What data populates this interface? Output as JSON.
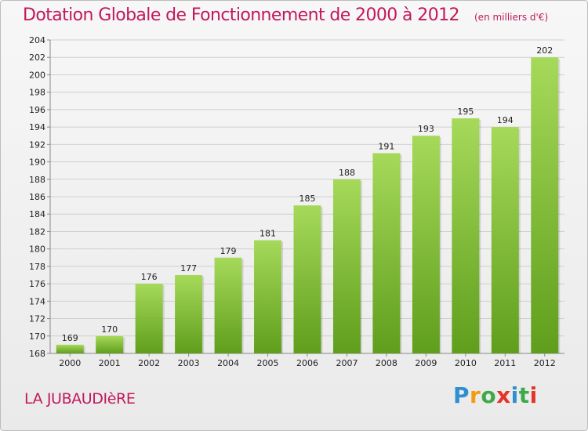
{
  "title": "Dotation Globale de Fonctionnement de 2000 à 2012",
  "subtitle": "(en milliers d'€)",
  "town": "LA JUBAUDIèRE",
  "logo": {
    "text": "Proxiti",
    "letters": [
      "P",
      "r",
      "o",
      "x",
      "i",
      "t",
      "i"
    ],
    "colors": [
      "#2f8fd0",
      "#f39c12",
      "#3ea94a",
      "#e6332a",
      "#2f8fd0",
      "#3ea94a",
      "#e6332a"
    ]
  },
  "colors": {
    "title": "#c2185b",
    "bar_top": "#a6d95a",
    "bar_bottom": "#5f9e1c",
    "grid": "#cfcfcf"
  },
  "chart_data": {
    "type": "bar",
    "categories": [
      "2000",
      "2001",
      "2002",
      "2003",
      "2004",
      "2005",
      "2006",
      "2007",
      "2008",
      "2009",
      "2010",
      "2011",
      "2012"
    ],
    "values": [
      169,
      170,
      176,
      177,
      179,
      181,
      185,
      188,
      191,
      193,
      195,
      194,
      202
    ],
    "yticks": [
      168,
      170,
      172,
      174,
      176,
      178,
      180,
      182,
      184,
      186,
      188,
      190,
      192,
      194,
      196,
      198,
      200,
      202,
      204
    ],
    "ylim": [
      168,
      204
    ],
    "grid": true,
    "xlabel": "",
    "ylabel": ""
  }
}
